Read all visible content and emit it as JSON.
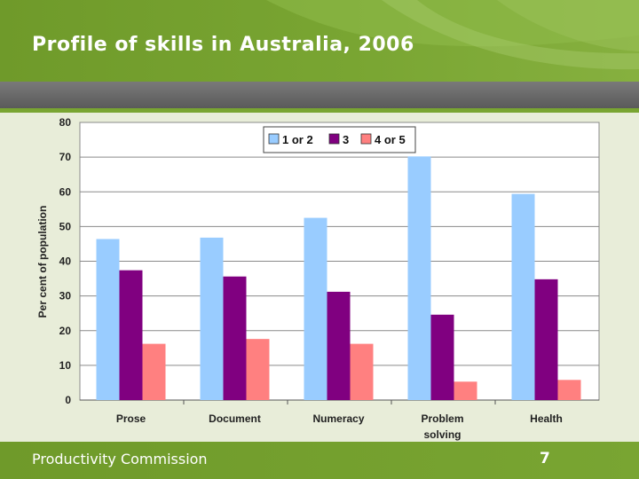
{
  "slide": {
    "title": "Profile of skills in Australia, 2006",
    "footer_org": "Productivity Commission",
    "page_number": "7"
  },
  "colors": {
    "header_green": "#79a532",
    "band_gray": "#6a6a6a",
    "background": "#e8edd9"
  },
  "chart_data": {
    "type": "bar",
    "title": "",
    "xlabel": "",
    "ylabel": "Per cent of population",
    "ylim": [
      0,
      80
    ],
    "yticks": [
      0,
      10,
      20,
      30,
      40,
      50,
      60,
      70,
      80
    ],
    "grid": true,
    "legend_position": "top",
    "categories": [
      "Prose",
      "Document",
      "Numeracy",
      "Problem solving",
      "Health"
    ],
    "category_lines": [
      [
        "Prose"
      ],
      [
        "Document"
      ],
      [
        "Numeracy"
      ],
      [
        "Problem",
        "solving"
      ],
      [
        "Health"
      ]
    ],
    "series": [
      {
        "name": "1 or 2",
        "color": "#99ccff",
        "values": [
          46.4,
          46.8,
          52.5,
          70.2,
          59.4
        ]
      },
      {
        "name": "3",
        "color": "#800080",
        "values": [
          37.4,
          35.6,
          31.2,
          24.6,
          34.8
        ]
      },
      {
        "name": "4 or 5",
        "color": "#ff8080",
        "values": [
          16.2,
          17.6,
          16.2,
          5.3,
          5.8
        ]
      }
    ]
  }
}
